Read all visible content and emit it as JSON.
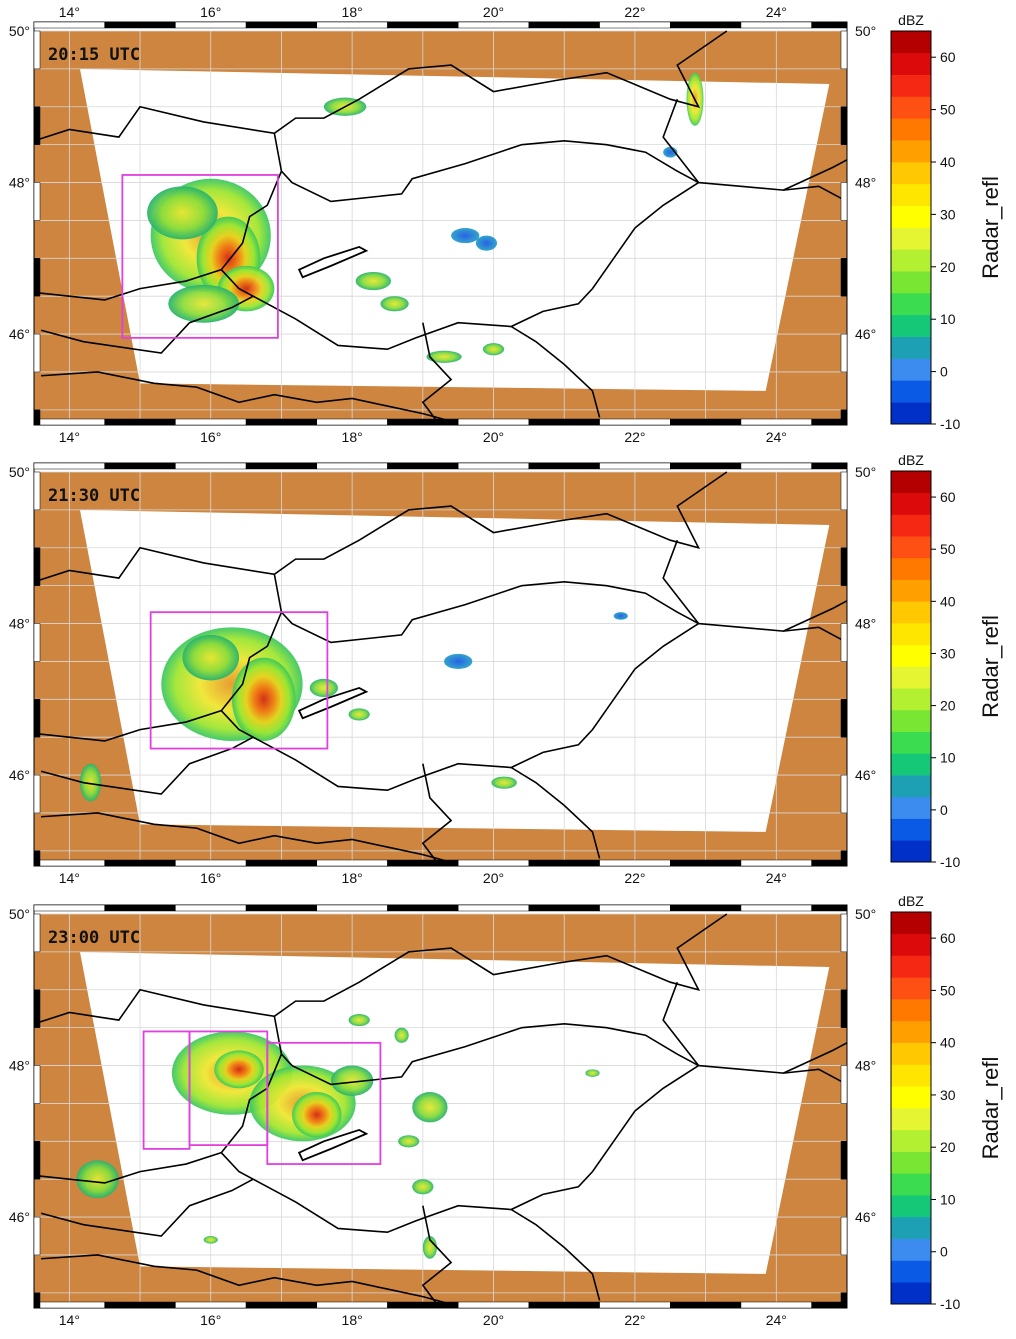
{
  "colors": {
    "outside_domain": "#cd853f",
    "domain": "#ffffff",
    "border": "#000000",
    "box": "#e040e0",
    "grid": "#d8d8d8"
  },
  "map": {
    "lon_range": [
      13.5,
      25.0
    ],
    "lat_range": [
      44.8,
      50.0
    ],
    "lon_ticks": [
      "14°",
      "16°",
      "18°",
      "20°",
      "22°",
      "24°"
    ],
    "lat_ticks": [
      "46°",
      "48°",
      "50°"
    ],
    "panels": [
      {
        "title": "20:15 UTC"
      },
      {
        "title": "21:30 UTC"
      },
      {
        "title": "23:00 UTC"
      }
    ]
  },
  "colorbar": {
    "unit": "dBZ",
    "variable": "Radar_refl",
    "tick_labels": [
      "60",
      "50",
      "40",
      "30",
      "20",
      "10",
      "0",
      "-10"
    ],
    "range": [
      -10,
      65
    ],
    "colors": [
      "#0030c8",
      "#0a5ae6",
      "#3c8cf0",
      "#1ea0b4",
      "#14c878",
      "#3cdc50",
      "#78e632",
      "#b4f032",
      "#e6f532",
      "#ffff00",
      "#ffe600",
      "#ffc800",
      "#ffa000",
      "#ff7800",
      "#ff5014",
      "#f52814",
      "#dc0a0a",
      "#b40000"
    ]
  }
}
